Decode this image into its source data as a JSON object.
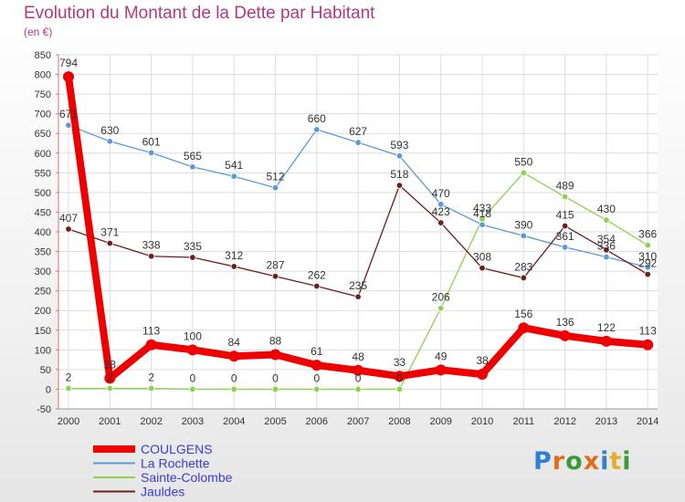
{
  "header": {
    "title": "Evolution du Montant de la Dette par Habitant",
    "subtitle": "(en €)"
  },
  "brand": {
    "text": "Proxiti",
    "colors": [
      "#2f7fd1",
      "#e36c1c",
      "#3a9a3a",
      "#e36c1c",
      "#2f7fd1",
      "#e2b12b",
      "#3a9a3a"
    ]
  },
  "chart_data": {
    "type": "line",
    "title": "Evolution du Montant de la Dette par Habitant",
    "subtitle": "(en €)",
    "xlabel": "",
    "ylabel": "",
    "ylim": [
      -50,
      850
    ],
    "yticks": [
      -50,
      0,
      50,
      100,
      150,
      200,
      250,
      300,
      350,
      400,
      450,
      500,
      550,
      600,
      650,
      700,
      750,
      800,
      850
    ],
    "categories": [
      "2000",
      "2001",
      "2002",
      "2003",
      "2004",
      "2005",
      "2006",
      "2007",
      "2008",
      "2009",
      "2010",
      "2011",
      "2012",
      "2013",
      "2014"
    ],
    "grid": true,
    "legend_position": "bottom-left",
    "series": [
      {
        "name": "COULGENS",
        "color": "#ee0000",
        "bold": true,
        "values": [
          794,
          28,
          113,
          100,
          84,
          88,
          61,
          48,
          33,
          49,
          38,
          156,
          136,
          122,
          113
        ]
      },
      {
        "name": "La Rochette",
        "color": "#5b9bd5",
        "values": [
          671,
          630,
          601,
          565,
          541,
          512,
          660,
          627,
          593,
          470,
          418,
          390,
          361,
          336,
          310
        ]
      },
      {
        "name": "Sainte-Colombe",
        "color": "#8fd14f",
        "values": [
          2,
          2,
          2,
          0,
          0,
          0,
          0,
          0,
          0,
          206,
          433,
          550,
          489,
          430,
          366
        ]
      },
      {
        "name": "Jauldes",
        "color": "#6b1f1f",
        "values": [
          407,
          371,
          338,
          335,
          312,
          287,
          262,
          235,
          518,
          423,
          308,
          283,
          415,
          354,
          292
        ]
      }
    ]
  }
}
